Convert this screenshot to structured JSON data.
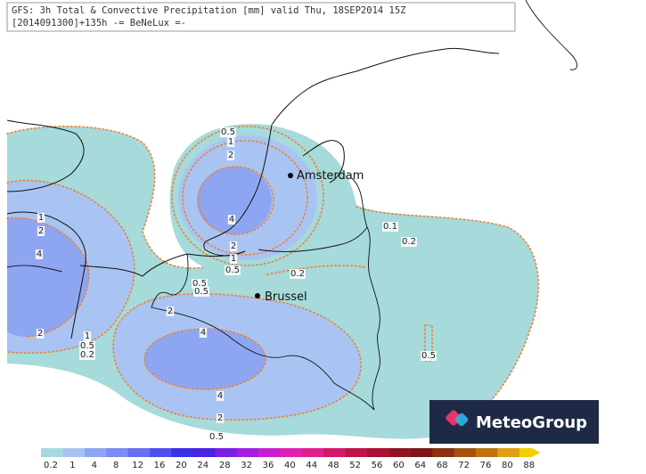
{
  "header": {
    "line1": "GFS: 3h Total & Convective Precipitation [mm] valid Thu, 18SEP2014 15Z",
    "line2": "[2014091300]+135h -= BeNeLux =-"
  },
  "cities": [
    {
      "label": "Amsterdam"
    },
    {
      "label": "Brussel"
    }
  ],
  "contour_labels": [
    "0.5",
    "1",
    "2",
    "4",
    "2",
    "1",
    "0.5",
    "0.2",
    "0.1",
    "0.2",
    "1",
    "2",
    "4",
    "0.5",
    "0.5",
    "2",
    "4",
    "2",
    "1",
    "0.5",
    "0.2",
    "0.5",
    "4",
    "2",
    "0.5"
  ],
  "legend": {
    "labels": [
      "0.2",
      "1",
      "4",
      "8",
      "12",
      "16",
      "20",
      "24",
      "28",
      "32",
      "36",
      "40",
      "44",
      "48",
      "52",
      "56",
      "60",
      "64",
      "68",
      "72",
      "76",
      "80",
      "88"
    ],
    "colors": [
      "#a6dadb",
      "#a9c4f2",
      "#8ea6f2",
      "#7c8cf2",
      "#6670f0",
      "#4e50ee",
      "#3a30e6",
      "#4a22e2",
      "#7a1ee0",
      "#a01edc",
      "#c81ed2",
      "#e020b0",
      "#e0208c",
      "#d41868",
      "#c01448",
      "#a81234",
      "#901424",
      "#7c1616",
      "#8c3012",
      "#a45212",
      "#c07212",
      "#dca010",
      "#f0d000"
    ]
  },
  "logo": "MeteoGroup"
}
